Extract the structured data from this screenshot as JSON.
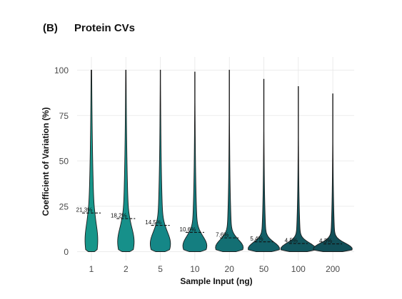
{
  "chart_data": {
    "type": "violin",
    "panel_label": "(B)",
    "title": "Protein CVs",
    "xlabel": "Sample Input (ng)",
    "ylabel": "Coefficient of Variation (%)",
    "ylim": [
      0,
      100
    ],
    "yticks": [
      0,
      25,
      50,
      75,
      100
    ],
    "grid": true,
    "categories": [
      "1",
      "2",
      "5",
      "10",
      "20",
      "50",
      "100",
      "200"
    ],
    "medians": [
      21.3,
      18.2,
      14.5,
      10.6,
      7.6,
      5.4,
      4.5,
      4.3
    ],
    "median_labels": [
      "21.3%",
      "18.2%",
      "14.5%",
      "10.6%",
      "7.6%",
      "5.4%",
      "4.5%",
      "4.3%"
    ],
    "max_values": [
      100,
      100,
      100,
      99,
      100,
      95,
      91,
      87
    ],
    "colors": [
      "#17968a",
      "#16908a",
      "#158787",
      "#147e80",
      "#136f73",
      "#125f67",
      "#12575f",
      "#114f58"
    ]
  }
}
